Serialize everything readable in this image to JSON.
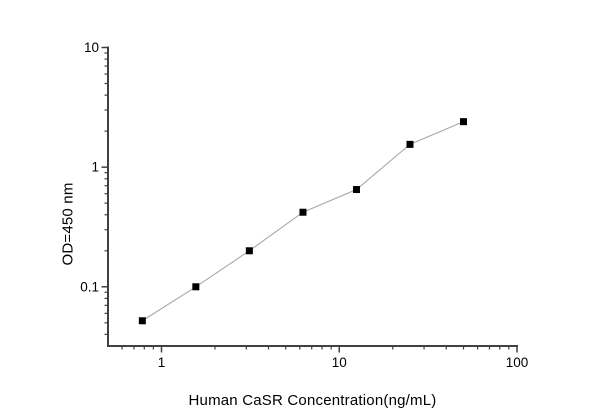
{
  "figure": {
    "background": "#ffffff"
  },
  "chart_data": {
    "type": "line",
    "title": "",
    "xlabel": "Human CaSR Concentration(ng/mL)",
    "ylabel": "OD=450 nm",
    "x_scale": "log",
    "y_scale": "log",
    "xlim": [
      0.5,
      100
    ],
    "ylim": [
      0.032,
      10
    ],
    "x_major_ticks": [
      1,
      10,
      100
    ],
    "x_tick_labels": [
      "1",
      "10",
      "100"
    ],
    "y_major_ticks": [
      0.1,
      1,
      10
    ],
    "y_tick_labels": [
      "0.1",
      "1",
      "10"
    ],
    "grid": false,
    "legend": false,
    "series": [
      {
        "x": [
          0.78,
          1.56,
          3.12,
          6.25,
          12.5,
          25,
          50
        ],
        "y": [
          0.052,
          0.1,
          0.2,
          0.42,
          0.65,
          1.55,
          2.4
        ],
        "marker": "filled-square",
        "marker_size": 7,
        "marker_color": "#000000",
        "line_color": "#a8a8a8"
      }
    ],
    "colors": {
      "axis": "#404040",
      "text": "#000000"
    }
  }
}
